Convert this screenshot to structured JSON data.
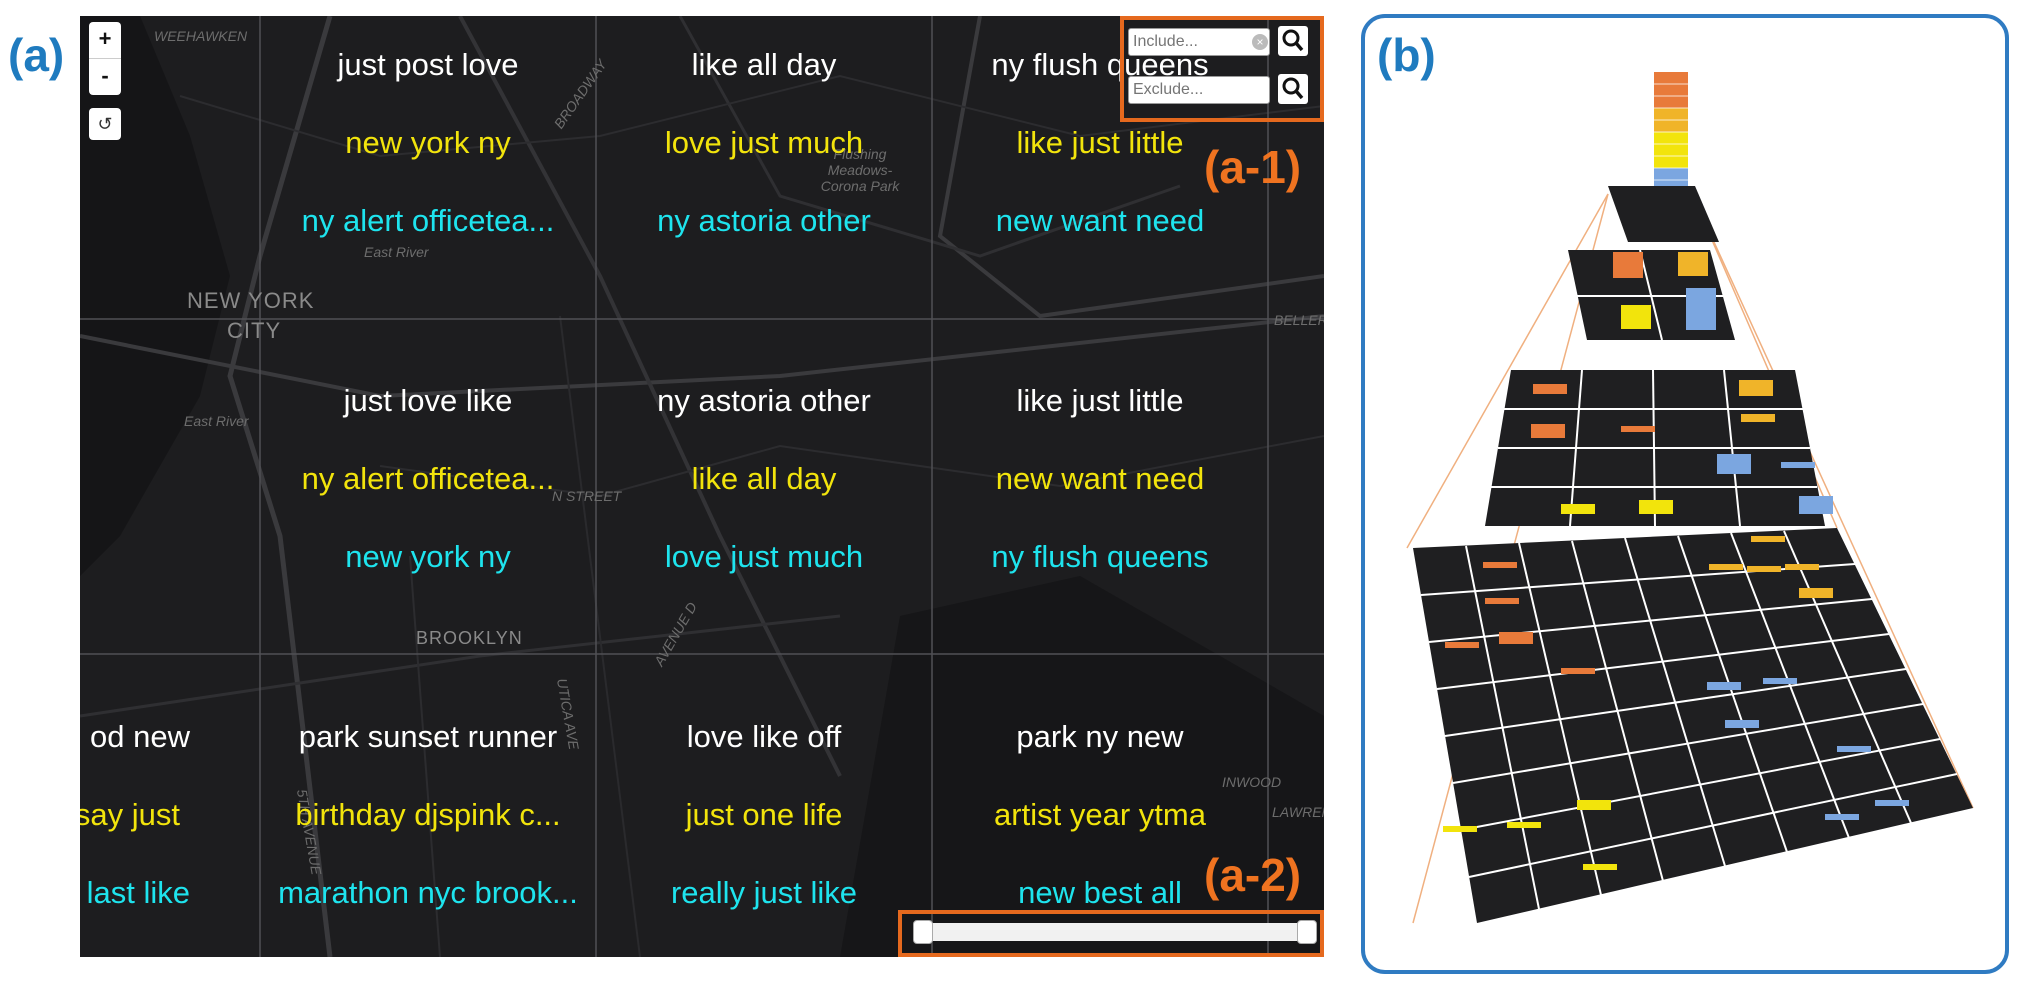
{
  "panels": {
    "a": "(a)",
    "b": "(b)"
  },
  "callouts": {
    "a1": "(a-1)",
    "a2": "(a-2)"
  },
  "map": {
    "zoom_in": "+",
    "zoom_out": "-",
    "reset": "↺",
    "search": {
      "include_placeholder": "Include...",
      "exclude_placeholder": "Exclude..."
    },
    "places": [
      "NEW YORK",
      "CITY",
      "BROOKLYN",
      "East River",
      "East River",
      "WEEHAWKEN",
      "BROADWAY",
      "Flushing Meadows-Corona Park",
      "BELLEROSE",
      "INWOOD",
      "LAWRENCE",
      "AVENUE D",
      "UTICA AVE",
      "N STREET",
      "5TH AVENUE"
    ],
    "cells": [
      {
        "lines": [
          "just post love",
          "new york ny",
          "ny alert officetea..."
        ]
      },
      {
        "lines": [
          "like all day",
          "love just much",
          "ny astoria other"
        ]
      },
      {
        "lines": [
          "ny flush queens",
          "like just little",
          "new want need"
        ]
      },
      {
        "lines": [
          "just love like",
          "ny alert officetea...",
          "new york ny"
        ]
      },
      {
        "lines": [
          "ny astoria other",
          "like all day",
          "love just much"
        ]
      },
      {
        "lines": [
          "like just little",
          "new want need",
          "ny flush queens"
        ]
      },
      {
        "lines": [
          "od new",
          "say just",
          "last like"
        ]
      },
      {
        "lines": [
          "park sunset runner",
          "birthday djspink c...",
          "marathon nyc brook..."
        ]
      },
      {
        "lines": [
          "love like off",
          "just one life",
          "really just like"
        ]
      },
      {
        "lines": [
          "park ny new",
          "artist year ytma",
          "new best all"
        ]
      }
    ]
  },
  "colors": {
    "accent_blue": "#2f7bc2",
    "callout_orange": "#e5691e",
    "top_term": "#ffffff",
    "second_term": "#f2e40c",
    "third_term": "#1ee4ee",
    "bar_orange": "#e87a3a",
    "bar_yellow": "#f2e40c",
    "bar_gold": "#f0b429",
    "bar_blue": "#7ba6e0"
  },
  "icons": [
    "search-icon",
    "clear-icon",
    "reset-icon"
  ]
}
